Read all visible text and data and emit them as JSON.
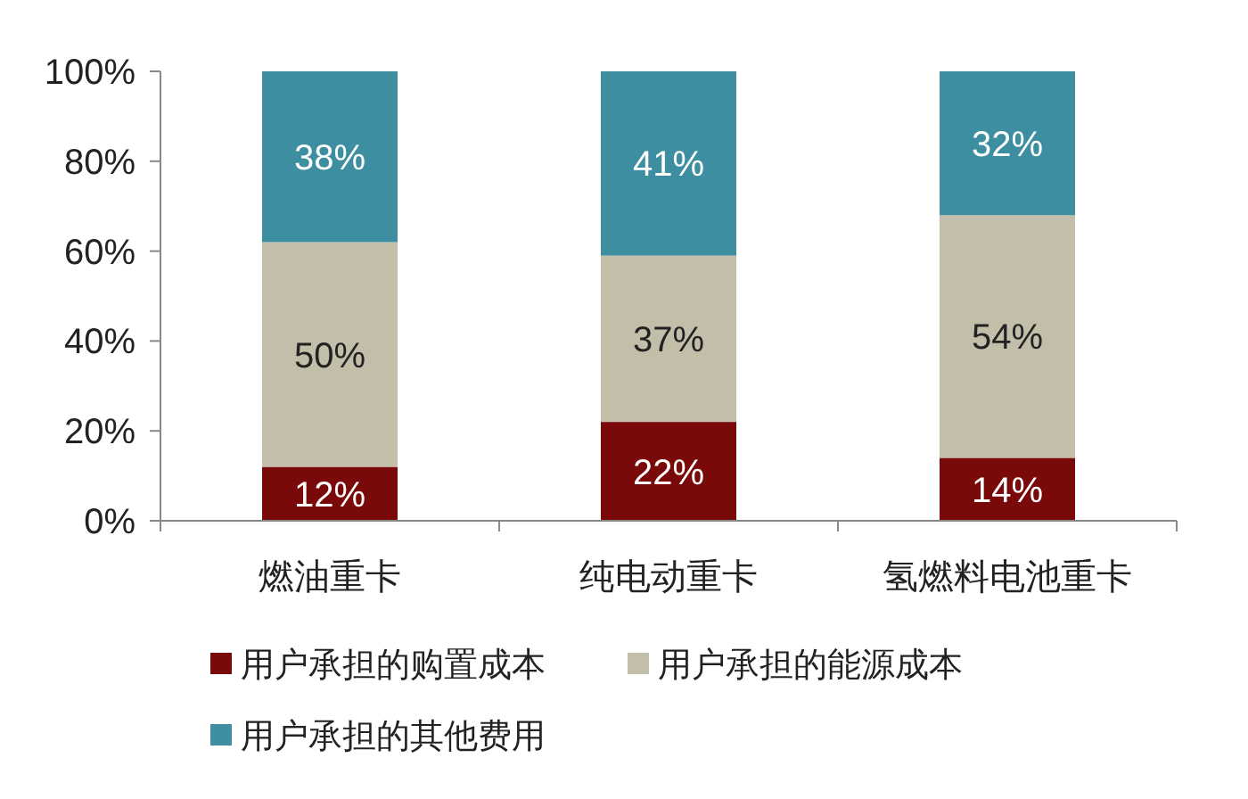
{
  "chart_data": {
    "type": "bar",
    "stacked": true,
    "categories": [
      "燃油重卡",
      "纯电动重卡",
      "氢燃料电池重卡"
    ],
    "series": [
      {
        "name": "用户承担的购置成本",
        "color": "#7a0a0a",
        "values": [
          12,
          22,
          14
        ],
        "value_labels": [
          "12%",
          "22%",
          "14%"
        ]
      },
      {
        "name": "用户承担的能源成本",
        "color": "#c2bea9",
        "values": [
          50,
          37,
          54
        ],
        "value_labels": [
          "50%",
          "37%",
          "54%"
        ]
      },
      {
        "name": "用户承担的其他费用",
        "color": "#3c8ea0",
        "values": [
          38,
          41,
          32
        ],
        "value_labels": [
          "38%",
          "41%",
          "32%"
        ]
      }
    ],
    "ylim": [
      0,
      100
    ],
    "yticks": [
      {
        "value": 0,
        "label": "0%"
      },
      {
        "value": 20,
        "label": "20%"
      },
      {
        "value": 40,
        "label": "40%"
      },
      {
        "value": 60,
        "label": "60%"
      },
      {
        "value": 80,
        "label": "80%"
      },
      {
        "value": 100,
        "label": "100%"
      }
    ],
    "legend": "bottom"
  }
}
